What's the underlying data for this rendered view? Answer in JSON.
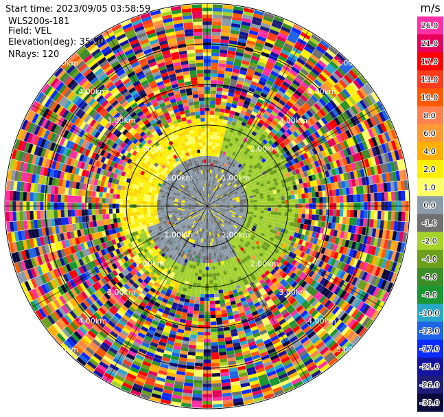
{
  "info": {
    "start_time": "Start time: 2023/09/05 03:58:59",
    "instrument": "WLS200s-181",
    "field": "Field: VEL",
    "elevation": "Elevation(deg): 35.30",
    "nrays": "NRays: 120"
  },
  "chart_data": {
    "type": "heatmap",
    "projection": "polar (PPI)",
    "nrays": 120,
    "elevation_deg": 35.3,
    "range_ring_labels": [
      "1.00km",
      "2.00km",
      "3.00km",
      "4.00km",
      "5.00km"
    ],
    "range_label_positions": [
      "NW",
      "NE",
      "SW",
      "SE"
    ],
    "colorbar": {
      "unit": "m/s",
      "tick_labels": [
        "26.0",
        "21.0",
        "17.0",
        "13.0",
        "10.0",
        "8.0",
        "6.0",
        "4.0",
        "2.0",
        "1.0",
        "0.0",
        "-1.0",
        "-2.0",
        "-4.0",
        "-6.0",
        "-8.0",
        "-10.0",
        "-13.0",
        "-17.0",
        "-21.0",
        "-26.0",
        "-30.0"
      ],
      "colors": [
        "#ff2fa4",
        "#e6005a",
        "#ff0000",
        "#ff3c1e",
        "#ff5a00",
        "#ff8050",
        "#ff9933",
        "#ffb000",
        "#ffee00",
        "#ffff66",
        "#8c9ba8",
        "#707070",
        "#a5d22a",
        "#6ca01a",
        "#3c8c28",
        "#1a9632",
        "#2aa7c8",
        "#1e64e6",
        "#0a2aff",
        "#1414a0",
        "#1e1e78",
        "#0a0a3c"
      ]
    },
    "pattern": {
      "inner_zone_km": 2.0,
      "inner_gray_km": 1.0,
      "noise_beyond_km": 2.0,
      "sectors": [
        {
          "from_deg": 270,
          "to_deg": 360,
          "dominant": "1.0 to 2.0 (yellow)"
        },
        {
          "from_deg": 0,
          "to_deg": 120,
          "dominant": "-2.0 (green)"
        },
        {
          "from_deg": 120,
          "to_deg": 200,
          "dominant": "-2.0 (green)"
        },
        {
          "from_deg": 200,
          "to_deg": 270,
          "dominant": "0.0 (gray)"
        }
      ]
    }
  }
}
